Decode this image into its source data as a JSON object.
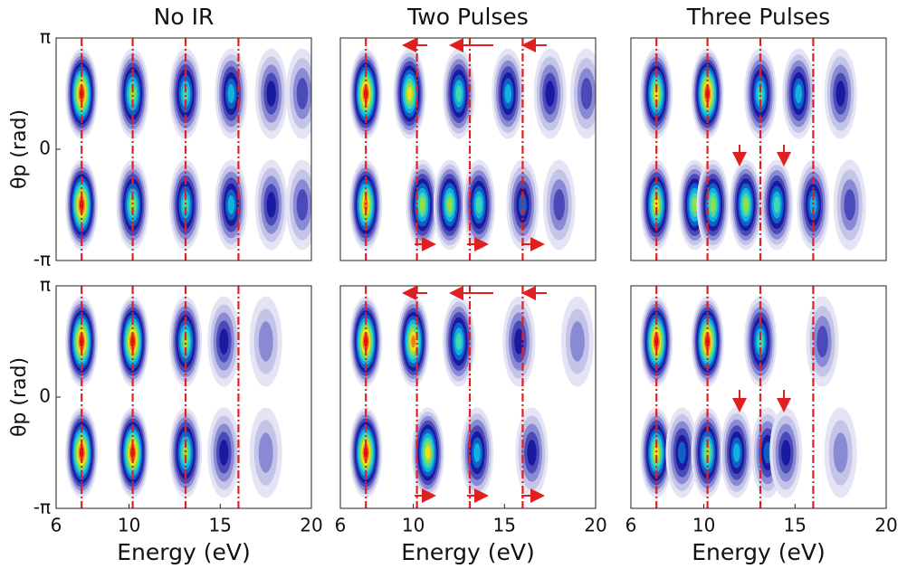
{
  "chart_data": [
    {
      "type": "heatmap",
      "title": "No IR",
      "ylabel": "θp (rad)",
      "xlim": [
        6,
        20
      ],
      "ylim": [
        -3.1416,
        3.1416
      ],
      "yticks": [
        {
          "value": 3.1416,
          "label": "π"
        },
        0,
        {
          "value": -3.1416,
          "label": "-π"
        }
      ],
      "vlines": [
        7.4,
        10.2,
        13.1,
        16
      ],
      "x": [
        7.4,
        10.2,
        13.1,
        15.6,
        17.8,
        19.5,
        7.4,
        10.2,
        13.1,
        15.6,
        17.8,
        19.5
      ],
      "y": [
        1.57,
        1.57,
        1.57,
        1.57,
        1.57,
        1.57,
        -1.57,
        -1.57,
        -1.57,
        -1.57,
        -1.57,
        -1.57
      ],
      "values": [
        1.0,
        0.75,
        0.65,
        0.5,
        0.35,
        0.25,
        1.0,
        0.75,
        0.65,
        0.5,
        0.35,
        0.25
      ]
    },
    {
      "type": "heatmap",
      "title": "Two Pulses",
      "xlim": [
        6,
        20
      ],
      "ylim": [
        -3.1416,
        3.1416
      ],
      "vlines": [
        7.4,
        10.2,
        13.1,
        16
      ],
      "x": [
        7.4,
        9.8,
        12.5,
        15.2,
        17.5,
        19.5,
        7.4,
        10.5,
        12,
        13.6,
        16,
        18
      ],
      "y": [
        1.57,
        1.57,
        1.57,
        1.57,
        1.57,
        1.57,
        -1.57,
        -1.57,
        -1.57,
        -1.57,
        -1.57,
        -1.57
      ],
      "values": [
        1.0,
        0.8,
        0.65,
        0.55,
        0.35,
        0.25,
        0.95,
        0.7,
        0.7,
        0.6,
        0.45,
        0.3
      ]
    },
    {
      "type": "heatmap",
      "title": "Three Pulses",
      "xlim": [
        6,
        20
      ],
      "ylim": [
        -3.1416,
        3.1416
      ],
      "vlines": [
        7.4,
        10.2,
        13.1,
        16
      ],
      "x": [
        7.4,
        10.2,
        13.1,
        15.2,
        17.5,
        7.4,
        9.5,
        10.5,
        12.3,
        14,
        16,
        18
      ],
      "y": [
        1.57,
        1.57,
        1.57,
        1.57,
        1.57,
        -1.57,
        -1.57,
        -1.57,
        -1.57,
        -1.57,
        -1.57,
        -1.57
      ],
      "values": [
        0.8,
        1.0,
        0.6,
        0.5,
        0.35,
        0.8,
        0.7,
        0.75,
        0.7,
        0.65,
        0.5,
        0.3
      ]
    },
    {
      "type": "heatmap",
      "xlabel": "Energy (eV)",
      "ylabel": "θp (rad)",
      "xlim": [
        6,
        20
      ],
      "ylim": [
        -3.1416,
        3.1416
      ],
      "xticks": [
        6,
        10,
        15,
        20
      ],
      "yticks": [
        {
          "value": 3.1416,
          "label": "π"
        },
        0,
        {
          "value": -3.1416,
          "label": "-π"
        }
      ],
      "vlines": [
        7.4,
        10.2,
        13.1,
        16
      ],
      "x": [
        7.4,
        10.2,
        13.1,
        15.2,
        17.5,
        7.4,
        10.2,
        13.1,
        15.2,
        17.5
      ],
      "y": [
        1.57,
        1.57,
        1.57,
        1.57,
        1.57,
        -1.57,
        -1.57,
        -1.57,
        -1.57,
        -1.57
      ],
      "values": [
        1.0,
        1.0,
        0.7,
        0.35,
        0.2,
        1.0,
        1.0,
        0.7,
        0.35,
        0.2
      ]
    },
    {
      "type": "heatmap",
      "xlabel": "Energy (eV)",
      "xlim": [
        6,
        20
      ],
      "ylim": [
        -3.1416,
        3.1416
      ],
      "xticks": [
        6,
        10,
        15,
        20
      ],
      "vlines": [
        7.4,
        10.2,
        13.1,
        16
      ],
      "x": [
        7.4,
        10,
        12.5,
        15.8,
        19,
        7.4,
        10.8,
        13.5,
        16.5
      ],
      "y": [
        1.57,
        1.57,
        1.57,
        1.57,
        1.57,
        -1.57,
        -1.57,
        -1.57,
        -1.57
      ],
      "values": [
        1.0,
        0.95,
        0.6,
        0.4,
        0.15,
        1.0,
        0.8,
        0.5,
        0.35
      ]
    },
    {
      "type": "heatmap",
      "xlabel": "Energy (eV)",
      "xlim": [
        6,
        20
      ],
      "ylim": [
        -3.1416,
        3.1416
      ],
      "xticks": [
        6,
        10,
        15,
        20
      ],
      "vlines": [
        7.4,
        10.2,
        13.1,
        16
      ],
      "x": [
        7.4,
        10.2,
        13.1,
        16.5,
        7.4,
        8.8,
        10.2,
        11.8,
        13.5,
        14.5,
        17.5
      ],
      "y": [
        1.57,
        1.57,
        1.57,
        1.57,
        -1.57,
        -1.57,
        -1.57,
        -1.57,
        -1.57,
        -1.57,
        -1.57
      ],
      "values": [
        1.0,
        1.0,
        0.65,
        0.3,
        0.8,
        0.45,
        0.7,
        0.5,
        0.45,
        0.4,
        0.2
      ]
    }
  ]
}
